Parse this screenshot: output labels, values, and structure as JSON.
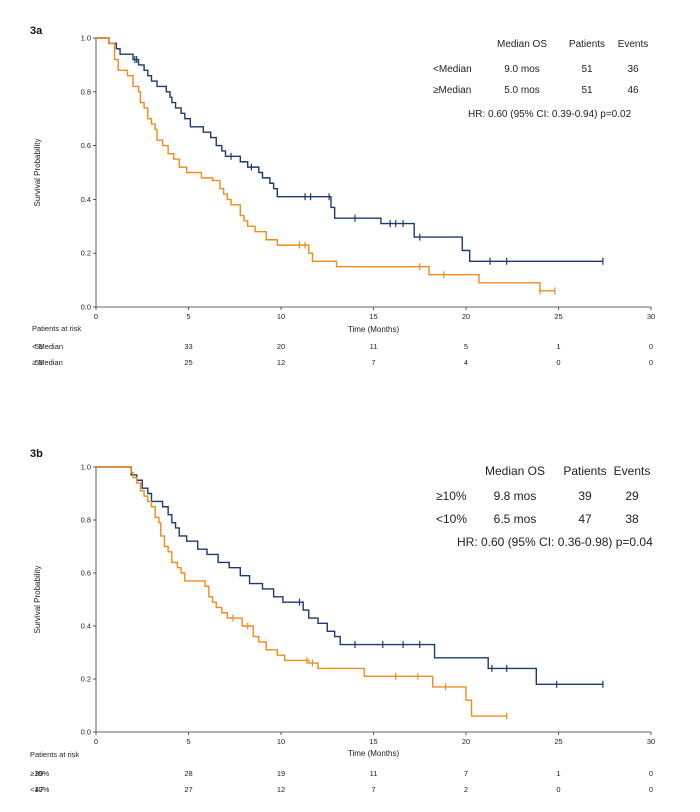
{
  "chart_data": [
    {
      "type": "line",
      "subtype": "kaplan-meier",
      "panel_label": "3a",
      "xlabel": "Time (Months)",
      "ylabel": "Survival Probability",
      "xlim": [
        0,
        30
      ],
      "ylim": [
        0,
        1.0
      ],
      "xticks": [
        0,
        5,
        10,
        15,
        20,
        25,
        30
      ],
      "yticks": [
        0.0,
        0.2,
        0.4,
        0.6,
        0.8,
        1.0
      ],
      "xtick_labels": [
        "0",
        "5",
        "10",
        "15",
        "20",
        "25",
        "30"
      ],
      "ytick_labels": [
        "0.0",
        "0.2",
        "0.4",
        "0.6",
        "0.8",
        "1.0"
      ],
      "legend_table": {
        "headers": [
          "Median OS",
          "Patients",
          "Events"
        ],
        "rows": [
          {
            "group": "<Median",
            "median_os": "9.0 mos",
            "patients": "51",
            "events": "36",
            "color": "#1c3a70"
          },
          {
            "group": "≥Median",
            "median_os": "5.0 mos",
            "patients": "51",
            "events": "46",
            "color": "#f28a1c"
          }
        ],
        "hr_text": "HR: 0.60 (95% CI: 0.39-0.94) p=0.02"
      },
      "risk_table": {
        "title": "Patients at risk",
        "times": [
          0,
          5,
          10,
          15,
          20,
          25,
          30
        ],
        "rows": [
          {
            "label": "< Median",
            "values": [
              "51",
              "33",
              "20",
              "11",
              "5",
              "1",
              "0"
            ]
          },
          {
            "label": "≥ Median",
            "values": [
              "51",
              "25",
              "12",
              "7",
              "4",
              "0",
              "0"
            ]
          }
        ]
      },
      "series": [
        {
          "name": "<Median",
          "color": "#1c3a70",
          "steps": [
            [
              0,
              1.0
            ],
            [
              0.7,
              0.98
            ],
            [
              1.1,
              0.96
            ],
            [
              1.3,
              0.94
            ],
            [
              2.0,
              0.92
            ],
            [
              2.3,
              0.9
            ],
            [
              2.6,
              0.88
            ],
            [
              2.8,
              0.86
            ],
            [
              3.0,
              0.84
            ],
            [
              3.3,
              0.82
            ],
            [
              3.8,
              0.8
            ],
            [
              4.0,
              0.78
            ],
            [
              4.1,
              0.76
            ],
            [
              4.3,
              0.74
            ],
            [
              4.6,
              0.72
            ],
            [
              4.8,
              0.7
            ],
            [
              5.1,
              0.67
            ],
            [
              5.8,
              0.65
            ],
            [
              6.2,
              0.63
            ],
            [
              6.5,
              0.6
            ],
            [
              6.8,
              0.58
            ],
            [
              7.0,
              0.56
            ],
            [
              7.8,
              0.54
            ],
            [
              8.2,
              0.52
            ],
            [
              8.8,
              0.5
            ],
            [
              9.0,
              0.48
            ],
            [
              9.4,
              0.46
            ],
            [
              9.6,
              0.44
            ],
            [
              9.8,
              0.41
            ],
            [
              10.3,
              0.41
            ],
            [
              12.7,
              0.37
            ],
            [
              12.9,
              0.33
            ],
            [
              15.4,
              0.31
            ],
            [
              17.2,
              0.26
            ],
            [
              19.8,
              0.21
            ],
            [
              20.2,
              0.17
            ],
            [
              27.4,
              0.17
            ]
          ],
          "censor_times": [
            2.1,
            2.2,
            7.3,
            8.4,
            11.3,
            11.6,
            12.6,
            14.0,
            15.9,
            16.2,
            16.6,
            17.5,
            21.3,
            22.2,
            27.4
          ]
        },
        {
          "name": "≥Median",
          "color": "#f28a1c",
          "steps": [
            [
              0,
              1.0
            ],
            [
              0.7,
              0.98
            ],
            [
              1.0,
              0.92
            ],
            [
              1.2,
              0.88
            ],
            [
              1.7,
              0.86
            ],
            [
              2.0,
              0.82
            ],
            [
              2.3,
              0.8
            ],
            [
              2.4,
              0.76
            ],
            [
              2.6,
              0.74
            ],
            [
              2.8,
              0.7
            ],
            [
              3.0,
              0.68
            ],
            [
              3.2,
              0.66
            ],
            [
              3.3,
              0.62
            ],
            [
              3.6,
              0.6
            ],
            [
              3.9,
              0.57
            ],
            [
              4.2,
              0.55
            ],
            [
              4.5,
              0.52
            ],
            [
              4.9,
              0.5
            ],
            [
              5.7,
              0.48
            ],
            [
              6.3,
              0.47
            ],
            [
              6.7,
              0.44
            ],
            [
              6.9,
              0.42
            ],
            [
              7.1,
              0.4
            ],
            [
              7.3,
              0.38
            ],
            [
              7.8,
              0.34
            ],
            [
              8.0,
              0.32
            ],
            [
              8.2,
              0.3
            ],
            [
              8.6,
              0.28
            ],
            [
              9.2,
              0.25
            ],
            [
              9.8,
              0.23
            ],
            [
              11.5,
              0.2
            ],
            [
              11.7,
              0.17
            ],
            [
              13.0,
              0.15
            ],
            [
              18.0,
              0.12
            ],
            [
              20.0,
              0.12
            ],
            [
              20.7,
              0.09
            ],
            [
              24.0,
              0.06
            ],
            [
              24.8,
              0.06
            ]
          ],
          "censor_times": [
            11.0,
            11.3,
            17.5,
            18.8,
            24.0,
            24.8
          ]
        }
      ]
    },
    {
      "type": "line",
      "subtype": "kaplan-meier",
      "panel_label": "3b",
      "xlabel": "Time (Months)",
      "ylabel": "Survival Probability",
      "xlim": [
        0,
        30
      ],
      "ylim": [
        0,
        1.0
      ],
      "xticks": [
        0,
        5,
        10,
        15,
        20,
        25,
        30
      ],
      "yticks": [
        0.0,
        0.2,
        0.4,
        0.6,
        0.8,
        1.0
      ],
      "xtick_labels": [
        "0",
        "5",
        "10",
        "15",
        "20",
        "25",
        "30"
      ],
      "ytick_labels": [
        "0.0",
        "0.2",
        "0.4",
        "0.6",
        "0.8",
        "1.0"
      ],
      "legend_table": {
        "headers": [
          "Median OS",
          "Patients",
          "Events"
        ],
        "rows": [
          {
            "group": "≥10%",
            "median_os": "9.8 mos",
            "patients": "39",
            "events": "29",
            "color": "#1c3a70"
          },
          {
            "group": "<10%",
            "median_os": "6.5 mos",
            "patients": "47",
            "events": "38",
            "color": "#f28a1c"
          }
        ],
        "hr_text": "HR: 0.60 (95% CI: 0.36-0.98) p=0.04"
      },
      "risk_table": {
        "title": "Patients at risk",
        "times": [
          0,
          5,
          10,
          15,
          20,
          25,
          30
        ],
        "rows": [
          {
            "label": "≥10%",
            "values": [
              "39",
              "28",
              "19",
              "11",
              "7",
              "1",
              "0"
            ]
          },
          {
            "label": "<10%",
            "values": [
              "47",
              "27",
              "12",
              "7",
              "2",
              "0",
              "0"
            ]
          }
        ]
      },
      "series": [
        {
          "name": "≥10%",
          "color": "#1c3a70",
          "steps": [
            [
              0,
              1.0
            ],
            [
              1.9,
              0.97
            ],
            [
              2.2,
              0.95
            ],
            [
              2.5,
              0.92
            ],
            [
              2.8,
              0.9
            ],
            [
              3.0,
              0.87
            ],
            [
              3.6,
              0.85
            ],
            [
              3.9,
              0.82
            ],
            [
              4.1,
              0.79
            ],
            [
              4.3,
              0.77
            ],
            [
              4.5,
              0.74
            ],
            [
              4.9,
              0.72
            ],
            [
              5.5,
              0.69
            ],
            [
              6.0,
              0.67
            ],
            [
              6.6,
              0.64
            ],
            [
              7.2,
              0.62
            ],
            [
              7.8,
              0.59
            ],
            [
              8.3,
              0.56
            ],
            [
              9.0,
              0.54
            ],
            [
              9.6,
              0.51
            ],
            [
              10.1,
              0.49
            ],
            [
              11.2,
              0.46
            ],
            [
              11.5,
              0.43
            ],
            [
              12.0,
              0.41
            ],
            [
              12.5,
              0.38
            ],
            [
              12.9,
              0.36
            ],
            [
              13.2,
              0.33
            ],
            [
              14.0,
              0.33
            ],
            [
              18.3,
              0.28
            ],
            [
              21.2,
              0.24
            ],
            [
              23.8,
              0.18
            ],
            [
              27.4,
              0.18
            ]
          ],
          "censor_times": [
            11.0,
            14.0,
            15.5,
            16.6,
            17.5,
            21.4,
            22.2,
            24.9,
            27.4
          ]
        },
        {
          "name": "<10%",
          "color": "#f28a1c",
          "steps": [
            [
              0,
              1.0
            ],
            [
              1.9,
              0.98
            ],
            [
              2.0,
              0.96
            ],
            [
              2.2,
              0.94
            ],
            [
              2.4,
              0.91
            ],
            [
              2.6,
              0.89
            ],
            [
              2.8,
              0.87
            ],
            [
              3.0,
              0.85
            ],
            [
              3.2,
              0.81
            ],
            [
              3.4,
              0.79
            ],
            [
              3.5,
              0.74
            ],
            [
              3.7,
              0.7
            ],
            [
              3.9,
              0.68
            ],
            [
              4.1,
              0.64
            ],
            [
              4.4,
              0.62
            ],
            [
              4.6,
              0.6
            ],
            [
              4.8,
              0.57
            ],
            [
              5.9,
              0.55
            ],
            [
              6.1,
              0.51
            ],
            [
              6.3,
              0.49
            ],
            [
              6.5,
              0.47
            ],
            [
              6.8,
              0.45
            ],
            [
              7.1,
              0.43
            ],
            [
              7.9,
              0.4
            ],
            [
              8.5,
              0.36
            ],
            [
              8.8,
              0.34
            ],
            [
              9.2,
              0.31
            ],
            [
              9.8,
              0.29
            ],
            [
              10.2,
              0.27
            ],
            [
              11.5,
              0.26
            ],
            [
              12.0,
              0.24
            ],
            [
              14.5,
              0.21
            ],
            [
              18.2,
              0.17
            ],
            [
              20.0,
              0.12
            ],
            [
              20.3,
              0.06
            ],
            [
              22.2,
              0.06
            ]
          ],
          "censor_times": [
            7.4,
            8.2,
            11.4,
            11.7,
            16.2,
            17.4,
            18.9,
            22.2
          ]
        }
      ]
    }
  ]
}
